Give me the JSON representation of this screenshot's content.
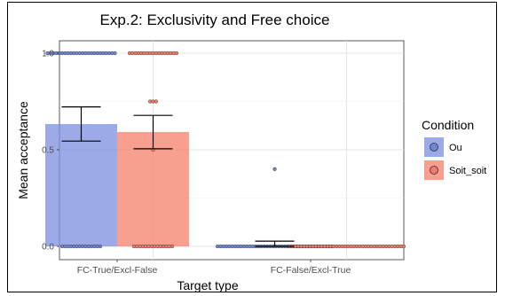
{
  "chart_data": {
    "type": "bar",
    "title": "Exp.2: Exclusivity and Free choice",
    "xlabel": "Target type",
    "ylabel": "Mean acceptance",
    "categories": [
      "FC-True/Excl-False",
      "FC-False/Excl-True"
    ],
    "ylim": [
      0,
      1.1
    ],
    "yticks": [
      "0.0",
      "0.5",
      "1.0"
    ],
    "ytick_values": [
      0,
      0.5,
      1
    ],
    "grid": true,
    "legend_title": "Condition",
    "legend_position": "right",
    "series": [
      {
        "name": "Ou",
        "color": "#7b8fe0",
        "point_color": "#6f86d6",
        "values": [
          0.633,
          0.0
        ],
        "error_low": [
          0.545,
          0.0
        ],
        "error_high": [
          0.722,
          0.027
        ],
        "points": [
          {
            "y": 1.0,
            "n": 24
          },
          {
            "y": 0.0,
            "n": 14
          },
          {
            "y": 0.4,
            "n": 1
          },
          {
            "y": 0.0,
            "n": 40
          }
        ]
      },
      {
        "name": "Soit_soit",
        "color": "#f77f6a",
        "point_color": "#f37b67",
        "values": [
          0.592,
          0.0
        ],
        "error_low": [
          0.505,
          0.0
        ],
        "error_high": [
          0.678,
          0.0
        ],
        "points": [
          {
            "y": 1.0,
            "n": 17
          },
          {
            "y": 0.75,
            "n": 3
          },
          {
            "y": 0.5,
            "n": 1
          },
          {
            "y": 0.0,
            "n": 14
          },
          {
            "y": 0.0,
            "n": 40
          }
        ]
      }
    ]
  }
}
